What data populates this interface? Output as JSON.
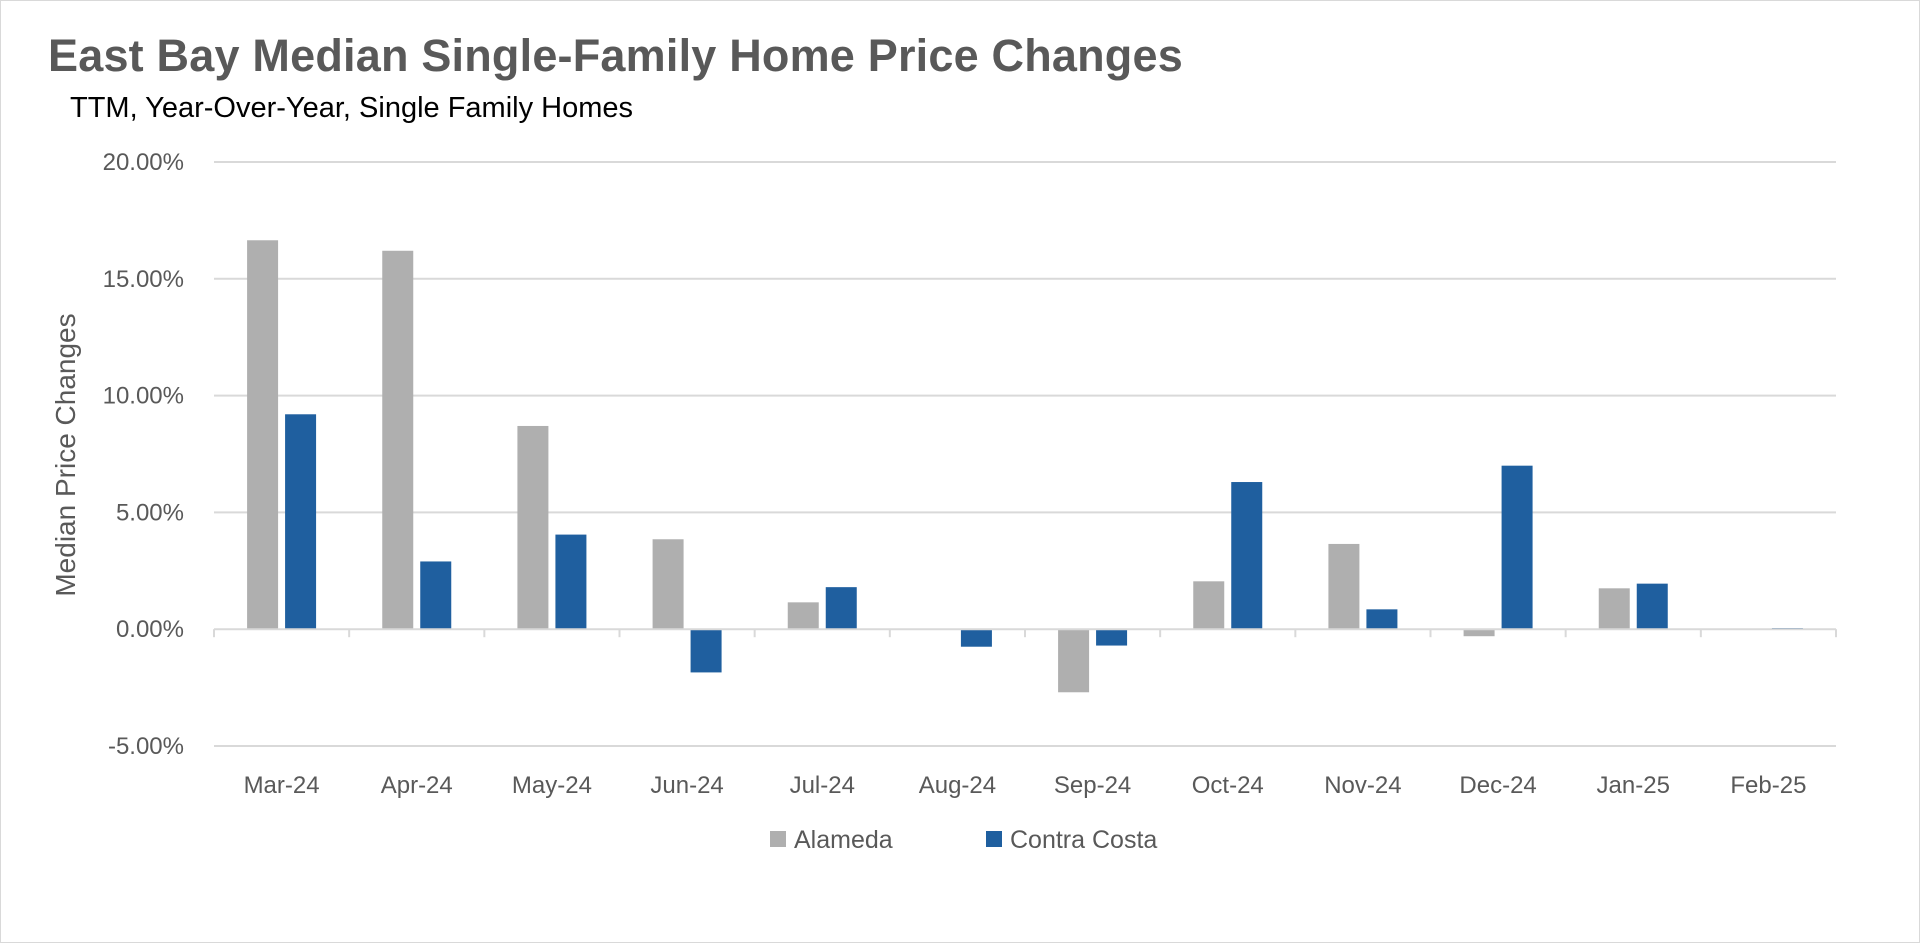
{
  "chart_data": {
    "type": "bar",
    "title": "East Bay Median Single-Family Home Price Changes",
    "subtitle": "TTM, Year-Over-Year, Single Family Homes",
    "xlabel": "",
    "ylabel": "Median Price Changes",
    "categories": [
      "Mar-24",
      "Apr-24",
      "May-24",
      "Jun-24",
      "Jul-24",
      "Aug-24",
      "Sep-24",
      "Oct-24",
      "Nov-24",
      "Dec-24",
      "Jan-25",
      "Feb-25"
    ],
    "series": [
      {
        "name": "Alameda",
        "color": "#afafaf",
        "values": [
          16.65,
          16.2,
          8.7,
          3.85,
          1.15,
          0.0,
          -2.7,
          2.05,
          3.65,
          -0.3,
          1.75,
          0.0
        ]
      },
      {
        "name": "Contra Costa",
        "color": "#1f5f9f",
        "values": [
          9.2,
          2.9,
          4.05,
          -1.85,
          1.8,
          -0.75,
          -0.7,
          6.3,
          0.85,
          7.0,
          1.95,
          0.05
        ]
      }
    ],
    "ylim": [
      -5,
      20
    ],
    "yticks": [
      -5,
      0,
      5,
      10,
      15,
      20
    ],
    "ytick_labels": [
      "-5.00%",
      "0.00%",
      "5.00%",
      "10.00%",
      "15.00%",
      "20.00%"
    ],
    "grid": true,
    "legend_position": "bottom"
  }
}
